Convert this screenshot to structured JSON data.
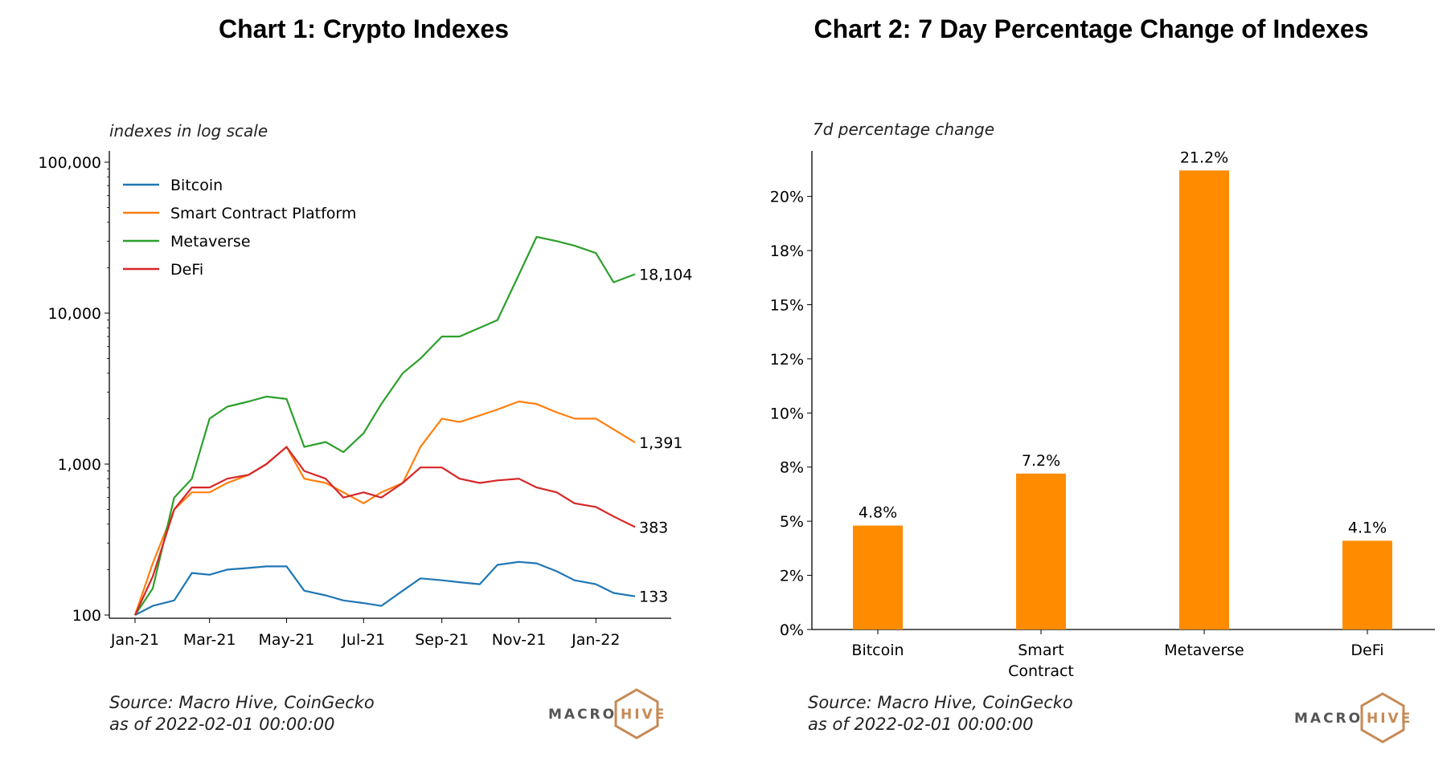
{
  "titles": {
    "left": "Chart 1: Crypto Indexes",
    "right": "Chart 2: 7 Day Percentage Change of Indexes"
  },
  "left": {
    "subtitle": "indexes in log scale",
    "source_line1": "Source: Macro Hive, CoinGecko",
    "source_line2": "as of 2022-02-01 00:00:00"
  },
  "right": {
    "subtitle": "7d percentage change",
    "source_line1": "Source: Macro Hive, CoinGecko",
    "source_line2": "as of 2022-02-01 00:00:00"
  },
  "logo": {
    "part1": "MACRO",
    "part2": "HIVE"
  },
  "colors": {
    "bitcoin": "#1f77b4",
    "smart": "#ff7f0e",
    "metaverse": "#2ca02c",
    "defi": "#d62728",
    "bar": "#ff8c00",
    "logo_hex": "#c68a55"
  },
  "chart_data": [
    {
      "type": "line",
      "title": "Chart 1: Crypto Indexes",
      "ylabel": "indexes in log scale",
      "yscale": "log",
      "ylim": [
        100,
        100000
      ],
      "yticks": [
        "100",
        "1,000",
        "10,000",
        "100,000"
      ],
      "xticks": [
        "Jan-21",
        "Mar-21",
        "May-21",
        "Jul-21",
        "Sep-21",
        "Nov-21",
        "Jan-22"
      ],
      "x": [
        "2021-01-01",
        "2021-01-15",
        "2021-02-01",
        "2021-02-15",
        "2021-03-01",
        "2021-03-15",
        "2021-04-01",
        "2021-04-15",
        "2021-05-01",
        "2021-05-15",
        "2021-06-01",
        "2021-06-15",
        "2021-07-01",
        "2021-07-15",
        "2021-08-01",
        "2021-08-15",
        "2021-09-01",
        "2021-09-15",
        "2021-10-01",
        "2021-10-15",
        "2021-11-01",
        "2021-11-15",
        "2021-12-01",
        "2021-12-15",
        "2022-01-01",
        "2022-01-15",
        "2022-02-01"
      ],
      "legend": "top-left",
      "series": [
        {
          "name": "Bitcoin",
          "end_label": "133",
          "values": [
            100,
            115,
            125,
            190,
            185,
            200,
            205,
            210,
            210,
            145,
            135,
            125,
            120,
            115,
            145,
            175,
            170,
            165,
            160,
            215,
            225,
            220,
            195,
            170,
            160,
            140,
            133
          ]
        },
        {
          "name": "Smart Contract Platform",
          "end_label": "1,391",
          "values": [
            100,
            220,
            500,
            650,
            650,
            750,
            850,
            1000,
            1300,
            800,
            750,
            650,
            550,
            650,
            750,
            1300,
            2000,
            1900,
            2100,
            2300,
            2600,
            2500,
            2200,
            2000,
            2000,
            1700,
            1391
          ]
        },
        {
          "name": "Metaverse",
          "end_label": "18,104",
          "values": [
            100,
            150,
            600,
            800,
            2000,
            2400,
            2600,
            2800,
            2700,
            1300,
            1400,
            1200,
            1600,
            2500,
            4000,
            5000,
            7000,
            7000,
            8000,
            9000,
            18000,
            32000,
            30000,
            28000,
            25000,
            16000,
            18104
          ]
        },
        {
          "name": "DeFi",
          "end_label": "383",
          "values": [
            100,
            180,
            500,
            700,
            700,
            800,
            850,
            1000,
            1300,
            900,
            800,
            600,
            650,
            600,
            750,
            950,
            950,
            800,
            750,
            780,
            800,
            700,
            650,
            550,
            520,
            450,
            383
          ]
        }
      ]
    },
    {
      "type": "bar",
      "title": "Chart 2: 7 Day Percentage Change of Indexes",
      "ylabel": "7d percentage change",
      "categories": [
        "Bitcoin",
        "Smart\nContract",
        "Metaverse",
        "DeFi"
      ],
      "values": [
        4.8,
        7.2,
        21.2,
        4.1
      ],
      "data_labels": [
        "4.8%",
        "7.2%",
        "21.2%",
        "4.1%"
      ],
      "ylim": [
        0,
        22.1
      ],
      "yticks": [
        "0%",
        "2%",
        "5%",
        "8%",
        "10%",
        "12%",
        "15%",
        "18%",
        "20%"
      ]
    }
  ]
}
